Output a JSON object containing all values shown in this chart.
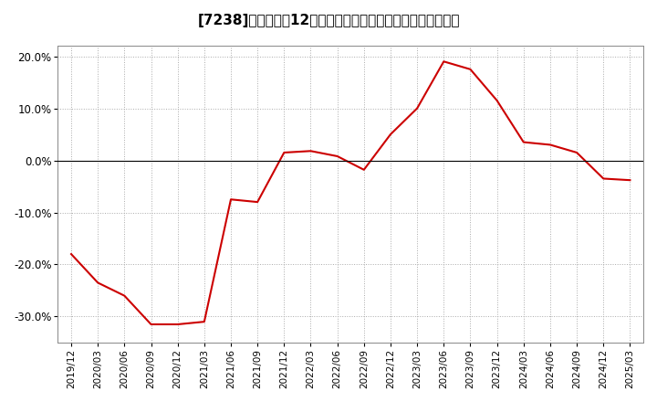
{
  "title_prefix": "[7238]",
  "title_main": "　売上高の12か月移動合計の対前年同期増減率の推移",
  "x_labels": [
    "2019/12",
    "2020/03",
    "2020/06",
    "2020/09",
    "2020/12",
    "2021/03",
    "2021/06",
    "2021/09",
    "2021/12",
    "2022/03",
    "2022/06",
    "2022/09",
    "2022/12",
    "2023/03",
    "2023/06",
    "2023/09",
    "2023/12",
    "2024/03",
    "2024/06",
    "2024/09",
    "2024/12",
    "2025/03"
  ],
  "y_values": [
    -18.0,
    -23.5,
    -26.0,
    -31.5,
    -31.5,
    -31.0,
    -7.5,
    -8.0,
    1.5,
    1.8,
    0.8,
    -1.8,
    5.0,
    10.0,
    19.0,
    17.5,
    11.5,
    3.5,
    3.0,
    1.5,
    -3.5,
    -3.8
  ],
  "line_color": "#cc0000",
  "line_width": 1.5,
  "background_color": "#ffffff",
  "plot_bg_color": "#ffffff",
  "grid_color": "#aaaaaa",
  "zero_line_color": "#000000",
  "ylim": [
    -35,
    22
  ],
  "yticks": [
    -30,
    -20,
    -10,
    0,
    10,
    20
  ],
  "ytick_labels": [
    "-30.0%",
    "-20.0%",
    "-10.0%",
    "0.0%",
    "10.0%",
    "20.0%"
  ]
}
